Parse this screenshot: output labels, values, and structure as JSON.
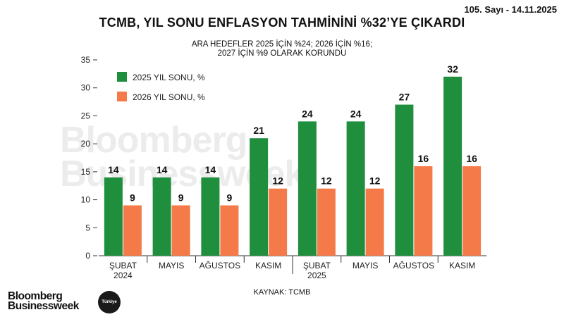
{
  "header": {
    "issue": "105. Sayı - 14.11.2025",
    "title": "TCMB, YIL SONU ENFLASYON TAHMİNİNİ %32’YE ÇIKARDI",
    "subtitle_line1": "ARA HEDEFLER 2025 İÇİN %24; 2026 İÇİN %16;",
    "subtitle_line2": "2027 İÇİN %9 OLARAK KORUNDU"
  },
  "footer": {
    "source": "KAYNAK: TCMB",
    "logo_line1": "Bloomberg",
    "logo_line2": "Businessweek",
    "badge": "Türkiye"
  },
  "watermark": {
    "line1": "Bloomberg",
    "line2": "Businessweek"
  },
  "colors": {
    "green": "#1f8f3e",
    "orange": "#f47a4a"
  },
  "chart_data": {
    "type": "bar",
    "title": "TCMB, YIL SONU ENFLASYON TAHMİNİNİ %32’YE ÇIKARDI",
    "categories": [
      [
        "ŞUBAT",
        "2024"
      ],
      [
        "MAYIS"
      ],
      [
        "AĞUSTOS"
      ],
      [
        "KASIM"
      ],
      [
        "ŞUBAT",
        "2025"
      ],
      [
        "MAYIS"
      ],
      [
        "AĞUSTOS"
      ],
      [
        "KASIM"
      ]
    ],
    "series": [
      {
        "name": "2025 YIL SONU, %",
        "values": [
          14,
          14,
          14,
          21,
          24,
          24,
          27,
          32
        ]
      },
      {
        "name": "2026 YIL SONU, %",
        "values": [
          9,
          9,
          9,
          12,
          12,
          12,
          16,
          16
        ]
      }
    ],
    "ylim": [
      0,
      35
    ],
    "yticks": [
      0,
      5,
      10,
      15,
      20,
      25,
      30,
      35
    ],
    "grid": false,
    "legend_position": "top-left"
  }
}
